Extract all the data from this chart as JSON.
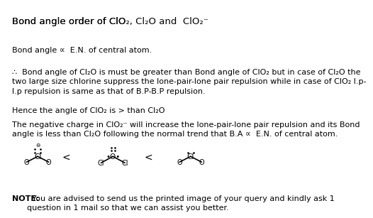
{
  "title": "Bond angle order of ClO₂, Cl₂O and  ClO₂⁻",
  "line1": "Bond angle ∝ E.N. of central atom.",
  "line2": "∴  Bond angle of Cl₂O is must be greater than Bond angle of ClO₂ but in case of Cl₂O the\ntwo large size chlorine suppress the lone-pair-lone pair repulsion while in case of ClO₂ l.p-\nl.p repulsion is same as that of B.P-B.P repulsion.",
  "line3": "Hence the angle of ClO₂ is > than Cl₂O",
  "line4": "The negative charge in ClO₂⁻ will increase the lone-pair-lone pair repulsion and its Bond\nangle is less than Cl₂O following the normal trend that B.A ∝  E.N. of central atom.",
  "note": "NOTE:  You are advised to send us the printed image of your query and kindly ask 1\nquestion in 1 mail so that we can assist you better.",
  "bg_color": "#ffffff",
  "text_color": "#000000",
  "title_fontsize": 9.5,
  "body_fontsize": 8.0,
  "note_fontsize": 8.0
}
